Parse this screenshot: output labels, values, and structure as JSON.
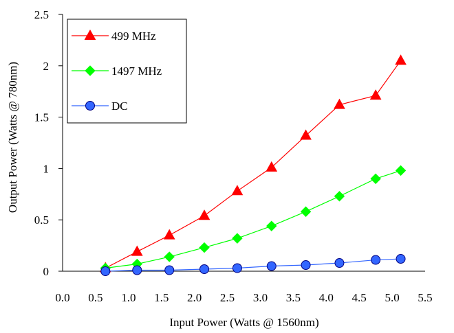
{
  "chart_data": {
    "type": "line",
    "xlabel": "Input Power (Watts @ 1560nm)",
    "ylabel": "Output Power (Watts @ 780nm)",
    "xlim": [
      0.0,
      5.5
    ],
    "ylim": [
      0,
      2.5
    ],
    "xticks": [
      0.0,
      0.5,
      1.0,
      1.5,
      2.0,
      2.5,
      3.0,
      3.5,
      4.0,
      4.5,
      5.0,
      5.5
    ],
    "xtick_labels": [
      "0.0",
      "0.5",
      "1.0",
      "1.5",
      "2.0",
      "2.5",
      "3.0",
      "3.5",
      "4.0",
      "4.5",
      "5.0",
      "5.5"
    ],
    "yticks": [
      0,
      0.5,
      1,
      1.5,
      2,
      2.5
    ],
    "ytick_labels": [
      "0",
      "0.5",
      "1",
      "1.5",
      "2",
      "2.5"
    ],
    "grid": false,
    "legend_position": "top-left",
    "x": [
      0.65,
      1.13,
      1.62,
      2.15,
      2.65,
      3.17,
      3.69,
      4.2,
      4.75,
      5.13
    ],
    "series": [
      {
        "name": "499 MHz",
        "color": "#ff0000",
        "marker": "triangle",
        "values": [
          0.03,
          0.19,
          0.35,
          0.54,
          0.78,
          1.01,
          1.32,
          1.62,
          1.71,
          2.05
        ]
      },
      {
        "name": "1497 MHz",
        "color": "#00ff00",
        "marker": "diamond",
        "values": [
          0.03,
          0.07,
          0.14,
          0.23,
          0.32,
          0.44,
          0.58,
          0.73,
          0.9,
          0.98
        ]
      },
      {
        "name": "DC",
        "color": "#3366ff",
        "marker": "circle",
        "values": [
          0.0,
          0.01,
          0.01,
          0.02,
          0.03,
          0.05,
          0.06,
          0.08,
          0.11,
          0.12
        ]
      }
    ]
  }
}
